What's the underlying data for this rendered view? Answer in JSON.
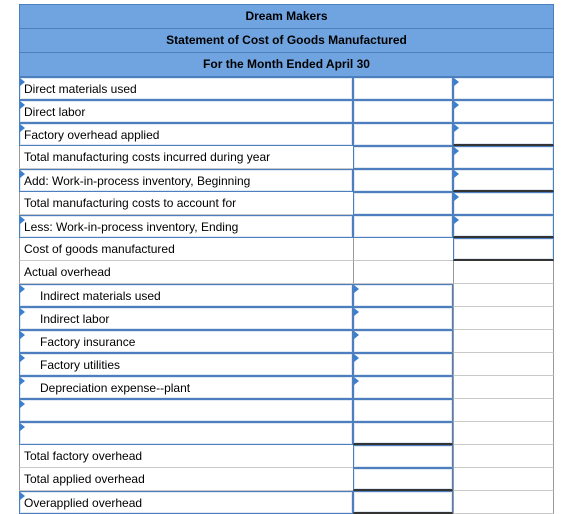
{
  "header": {
    "company": "Dream Makers",
    "statement": "Statement of Cost of Goods Manufactured",
    "period": "For the Month Ended April 30"
  },
  "rows": [
    {
      "label": "Direct materials used"
    },
    {
      "label": "Direct labor"
    },
    {
      "label": "Factory overhead applied"
    },
    {
      "label": "Total manufacturing costs incurred during year"
    },
    {
      "label": "Add: Work-in-process inventory, Beginning"
    },
    {
      "label": "Total manufacturing costs to account for"
    },
    {
      "label": "Less: Work-in-process inventory, Ending"
    },
    {
      "label": "Cost of goods manufactured"
    },
    {
      "label": "Actual overhead"
    },
    {
      "label": "Indirect materials used"
    },
    {
      "label": "Indirect labor"
    },
    {
      "label": "Factory insurance"
    },
    {
      "label": "Factory utilities"
    },
    {
      "label": "Depreciation expense--plant"
    },
    {
      "label": ""
    },
    {
      "label": ""
    },
    {
      "label": "Total factory overhead"
    },
    {
      "label": "Total applied overhead"
    },
    {
      "label": "Overapplied overhead"
    }
  ],
  "colors": {
    "header_bg": "#6fa4e0",
    "input_border": "#4d7fbf",
    "dropdown_flag": "#3b7fd1"
  }
}
